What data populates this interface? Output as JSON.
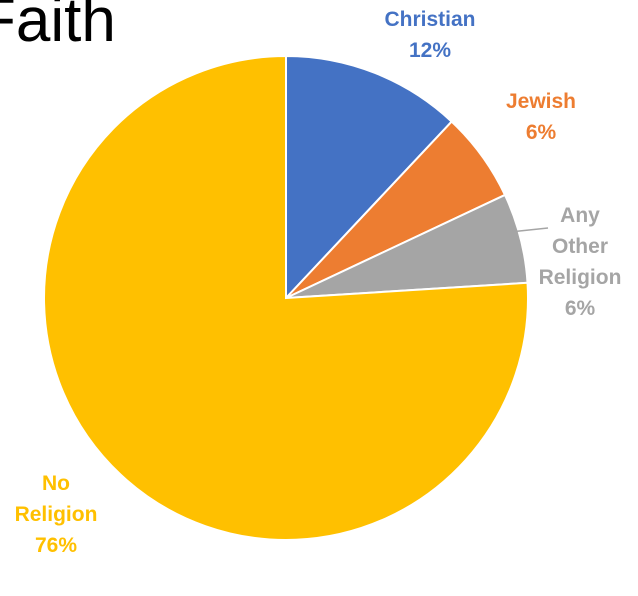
{
  "chart_data": {
    "type": "pie",
    "title": "Faith",
    "series": [
      {
        "slices": [
          {
            "label": "Christian",
            "value": 12,
            "display": "12%",
            "color": "#4472C4"
          },
          {
            "label": "Jewish",
            "value": 6,
            "display": "6%",
            "color": "#ED7D31"
          },
          {
            "label": "Any Other Religion",
            "value": 6,
            "display": "6%",
            "color": "#A5A5A5"
          },
          {
            "label": "No Religion",
            "value": 76,
            "display": "76%",
            "color": "#FFC000"
          }
        ]
      }
    ],
    "start_angle_deg": 0,
    "direction": "clockwise",
    "legend": "none"
  }
}
